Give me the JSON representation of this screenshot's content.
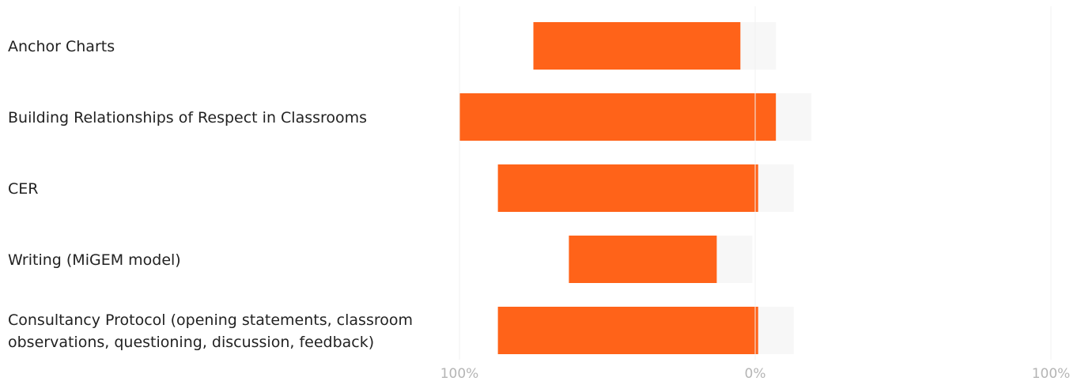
{
  "chart_data": {
    "type": "bar",
    "orientation": "horizontal-diverging",
    "categories": [
      [
        "Anchor Charts"
      ],
      [
        "Building Relationships of Respect in Classrooms"
      ],
      [
        "CER"
      ],
      [
        "Writing (MiGEM model)"
      ],
      [
        "Consultancy Protocol (opening statements, classroom",
        "observations, questioning, discussion, feedback)"
      ]
    ],
    "series": [
      {
        "values_left": [
          75,
          100,
          87,
          63,
          87
        ],
        "values_right": [
          -5,
          7,
          1,
          -13,
          1
        ],
        "color": "#ff6319"
      }
    ],
    "track_color": "#f7f7f7",
    "x_ticks": [
      "100%",
      "0%",
      "100%"
    ],
    "xlim": [
      -100,
      100
    ],
    "title": "",
    "xlabel": "",
    "ylabel": "",
    "grid": false,
    "legend": "none"
  }
}
